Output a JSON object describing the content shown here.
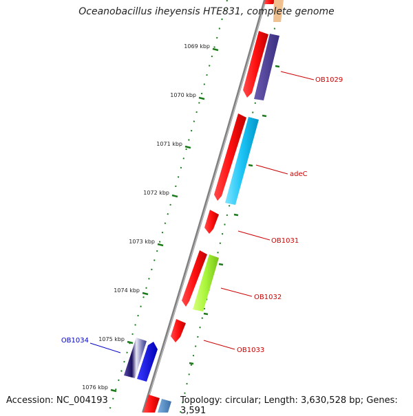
{
  "title": "Oceanobacillus iheyensis HTE831, complete genome",
  "footer": {
    "accession": "Accession: NC_004193",
    "summary": "Topology: circular; Length: 3,630,528 bp; Genes: 3,591"
  },
  "colors": {
    "backbone": "#808080",
    "tick": "#1a7a1a",
    "forward_label": "#cc0000",
    "reverse_label": "#0000cc"
  },
  "ticks": [
    {
      "label": "1069 kbp"
    },
    {
      "label": "1070 kbp"
    },
    {
      "label": "1071 kbp"
    },
    {
      "label": "1072 kbp"
    },
    {
      "label": "1073 kbp"
    },
    {
      "label": "1074 kbp"
    },
    {
      "label": "1075 kbp"
    },
    {
      "label": "1076 kbp"
    }
  ],
  "gene_labels": [
    {
      "text": "OB1029",
      "strand": "forward"
    },
    {
      "text": "adeC",
      "strand": "forward"
    },
    {
      "text": "OB1031",
      "strand": "forward"
    },
    {
      "text": "OB1032",
      "strand": "forward"
    },
    {
      "text": "OB1033",
      "strand": "forward"
    },
    {
      "text": "OB1034",
      "strand": "reverse"
    }
  ]
}
